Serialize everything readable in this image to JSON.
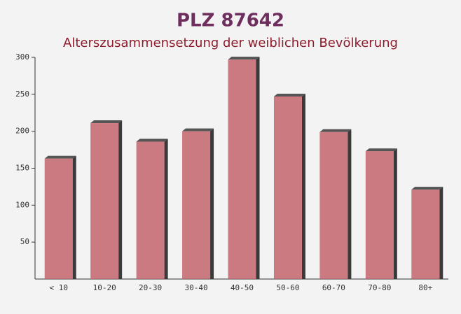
{
  "chart_data": {
    "type": "bar",
    "title": "PLZ 87642",
    "subtitle": "Alterszusammensetzung der weiblichen Bevölkerung",
    "categories": [
      "< 10",
      "10-20",
      "20-30",
      "30-40",
      "40-50",
      "50-60",
      "60-70",
      "70-80",
      "80+"
    ],
    "values": [
      163,
      211,
      186,
      200,
      297,
      247,
      199,
      173,
      121
    ],
    "color": "#c4646c",
    "ylim": [
      0,
      300
    ],
    "yticks": [
      50,
      100,
      150,
      200,
      250,
      300
    ]
  }
}
